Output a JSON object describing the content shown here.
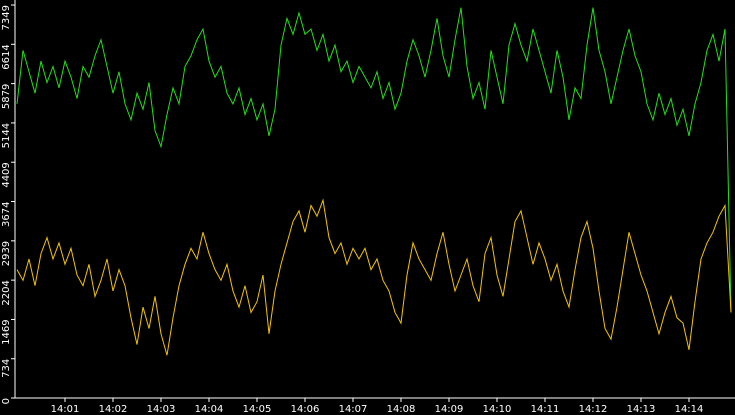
{
  "chart_data": {
    "type": "line",
    "categories": [
      null,
      null,
      null,
      null,
      null,
      null,
      null,
      null,
      "14:01",
      null,
      null,
      null,
      null,
      null,
      null,
      null,
      "14:02",
      null,
      null,
      null,
      null,
      null,
      null,
      null,
      "14:03",
      null,
      null,
      null,
      null,
      null,
      null,
      null,
      "14:04",
      null,
      null,
      null,
      null,
      null,
      null,
      null,
      "14:05",
      null,
      null,
      null,
      null,
      null,
      null,
      null,
      "14:06",
      null,
      null,
      null,
      null,
      null,
      null,
      null,
      "14:07",
      null,
      null,
      null,
      null,
      null,
      null,
      null,
      "14:08",
      null,
      null,
      null,
      null,
      null,
      null,
      null,
      "14:09",
      null,
      null,
      null,
      null,
      null,
      null,
      null,
      "14:10",
      null,
      null,
      null,
      null,
      null,
      null,
      null,
      "14:11",
      null,
      null,
      null,
      null,
      null,
      null,
      null,
      "14:12",
      null,
      null,
      null,
      null,
      null,
      null,
      null,
      "14:13",
      null,
      null,
      null,
      null,
      null,
      null,
      null,
      "14:14",
      null,
      null,
      null,
      null,
      null,
      null,
      null
    ],
    "series": [
      {
        "color": "#22e01a",
        "values": [
          5500,
          6500,
          6100,
          5700,
          6300,
          5900,
          6200,
          5800,
          6300,
          6000,
          5600,
          6200,
          6000,
          6400,
          6700,
          6200,
          5700,
          6100,
          5500,
          5200,
          5700,
          5400,
          5900,
          5000,
          4700,
          5300,
          5800,
          5500,
          6200,
          6400,
          6700,
          6900,
          6300,
          6000,
          6200,
          5700,
          5500,
          5800,
          5300,
          5600,
          5200,
          5500,
          4900,
          5400,
          6600,
          7100,
          6800,
          7200,
          6800,
          6900,
          6500,
          6800,
          6300,
          6600,
          6100,
          6300,
          5900,
          6200,
          6000,
          5800,
          6100,
          5600,
          5900,
          5400,
          5700,
          6300,
          6700,
          6400,
          6000,
          6500,
          7100,
          6400,
          6000,
          6700,
          7300,
          6200,
          5600,
          5900,
          5400,
          6500,
          6000,
          5500,
          6600,
          7000,
          6600,
          6300,
          6900,
          6500,
          6100,
          5700,
          6500,
          6000,
          5200,
          5800,
          5600,
          6600,
          7300,
          6500,
          6100,
          5500,
          6000,
          6500,
          6900,
          6400,
          6100,
          5500,
          5200,
          5700,
          5300,
          5600,
          5100,
          5400,
          4900,
          5500,
          5900,
          6500,
          6800,
          6300,
          6900,
          1600
        ]
      },
      {
        "color": "#f5c400",
        "values": [
          2400,
          2200,
          2600,
          2100,
          2700,
          3000,
          2600,
          2900,
          2500,
          2800,
          2300,
          2100,
          2500,
          1900,
          2200,
          2600,
          2000,
          2400,
          2100,
          1500,
          1000,
          1700,
          1300,
          1900,
          1200,
          800,
          1500,
          2100,
          2500,
          2800,
          2600,
          3100,
          2700,
          2400,
          2200,
          2500,
          2000,
          1700,
          2100,
          1600,
          1800,
          2300,
          1200,
          2000,
          2500,
          2900,
          3300,
          3500,
          3100,
          3600,
          3400,
          3700,
          3000,
          2700,
          2900,
          2500,
          2800,
          2600,
          2800,
          2400,
          2600,
          2200,
          2000,
          1600,
          1400,
          2300,
          2900,
          2600,
          2400,
          2200,
          2700,
          3100,
          2500,
          2000,
          2300,
          2600,
          2100,
          1800,
          2700,
          3000,
          2300,
          1900,
          2600,
          3300,
          3500,
          3000,
          2500,
          2900,
          2600,
          2200,
          2500,
          2000,
          1700,
          2400,
          3000,
          3300,
          2800,
          2000,
          1300,
          1100,
          1700,
          2400,
          3100,
          2700,
          2300,
          2000,
          1600,
          1200,
          1600,
          1900,
          1500,
          1400,
          900,
          1800,
          2600,
          2900,
          3100,
          3400,
          3600,
          1600
        ]
      }
    ],
    "ylim": [
      0,
      7349
    ],
    "yticks": [
      0,
      734,
      1469,
      2204,
      2939,
      3674,
      4409,
      5144,
      5879,
      6614,
      7349
    ]
  }
}
